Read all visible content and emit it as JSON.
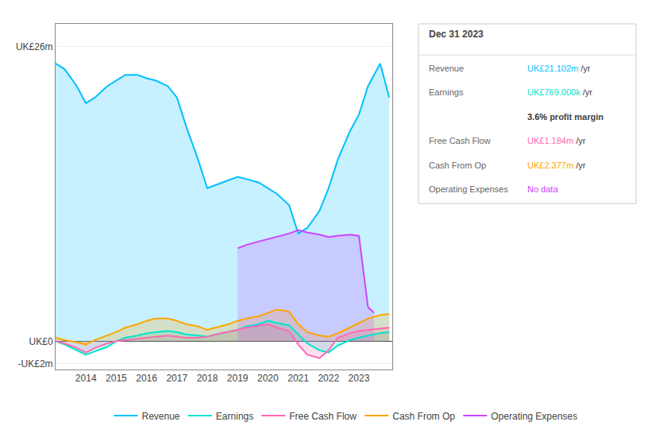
{
  "chart_data": {
    "type": "area",
    "x": [
      2013.0,
      2013.3,
      2013.7,
      2014.0,
      2014.3,
      2014.7,
      2015.0,
      2015.3,
      2015.7,
      2016.0,
      2016.3,
      2016.7,
      2017.0,
      2017.3,
      2017.7,
      2018.0,
      2018.3,
      2018.7,
      2019.0,
      2019.3,
      2019.7,
      2020.0,
      2020.3,
      2020.7,
      2021.0,
      2021.3,
      2021.7,
      2022.0,
      2022.3,
      2022.7,
      2023.0,
      2023.3,
      2023.7,
      2024.0
    ],
    "series": [
      {
        "name": "Revenue",
        "color": "#00bfff",
        "values": [
          24.5,
          24.0,
          22.5,
          21.0,
          21.5,
          22.5,
          23.0,
          23.5,
          23.5,
          23.2,
          23.0,
          22.5,
          21.5,
          19.0,
          16.0,
          13.5,
          13.8,
          14.2,
          14.5,
          14.3,
          14.0,
          13.5,
          13.0,
          12.0,
          9.5,
          10.0,
          11.5,
          13.5,
          16.0,
          18.5,
          20.0,
          22.5,
          24.5,
          21.5
        ]
      },
      {
        "name": "Earnings",
        "color": "#00e5cc",
        "values": [
          0.0,
          -0.3,
          -0.8,
          -1.2,
          -0.9,
          -0.5,
          0.0,
          0.3,
          0.5,
          0.7,
          0.8,
          0.9,
          0.8,
          0.6,
          0.5,
          0.4,
          0.6,
          0.8,
          1.0,
          1.3,
          1.5,
          1.8,
          1.6,
          1.4,
          0.6,
          -0.2,
          -0.8,
          -1.0,
          -0.4,
          0.1,
          0.3,
          0.5,
          0.7,
          0.8
        ]
      },
      {
        "name": "Free Cash Flow",
        "color": "#ff69b4",
        "values": [
          0.0,
          -0.2,
          -0.6,
          -1.0,
          -0.6,
          -0.2,
          0.0,
          0.1,
          0.2,
          0.3,
          0.4,
          0.5,
          0.4,
          0.3,
          0.3,
          0.4,
          0.6,
          0.8,
          1.0,
          1.2,
          1.4,
          1.5,
          1.2,
          0.9,
          -0.3,
          -1.2,
          -1.5,
          -0.8,
          0.3,
          0.7,
          0.9,
          1.0,
          1.1,
          1.2
        ]
      },
      {
        "name": "Cash From Op",
        "color": "#ffa500",
        "values": [
          0.3,
          0.1,
          -0.1,
          -0.3,
          0.1,
          0.5,
          0.8,
          1.2,
          1.5,
          1.8,
          2.0,
          2.0,
          1.8,
          1.5,
          1.3,
          1.0,
          1.2,
          1.5,
          1.8,
          2.0,
          2.2,
          2.5,
          2.8,
          2.6,
          1.5,
          0.8,
          0.5,
          0.4,
          0.7,
          1.2,
          1.6,
          2.0,
          2.3,
          2.4
        ]
      },
      {
        "name": "Operating Expenses",
        "color": "#cc44ff",
        "x": [
          2019.0,
          2019.3,
          2019.7,
          2020.0,
          2020.3,
          2020.7,
          2021.0,
          2021.3,
          2021.7,
          2022.0,
          2022.3,
          2022.7,
          2023.0,
          2023.3,
          2023.5
        ],
        "values": [
          8.2,
          8.5,
          8.8,
          9.0,
          9.2,
          9.5,
          9.8,
          9.6,
          9.4,
          9.2,
          9.3,
          9.4,
          9.3,
          3.0,
          2.5
        ]
      }
    ],
    "xlim": [
      2013.0,
      2024.1
    ],
    "xticks": [
      2014,
      2015,
      2016,
      2017,
      2018,
      2019,
      2020,
      2021,
      2022,
      2023
    ],
    "ylim": [
      -2.5,
      28
    ],
    "yticks": [
      {
        "value": 26,
        "label": "UK£26m"
      },
      {
        "value": 0,
        "label": "UK£0"
      },
      {
        "value": -2,
        "label": "-UK£2m"
      }
    ],
    "grid": "y",
    "legend": "bottom",
    "annotations": {
      "title": "Dec 31 2023",
      "rows": [
        {
          "label": "Revenue",
          "value": "UK£21.102m",
          "suffix": "/yr"
        },
        {
          "label": "Earnings",
          "value": "UK£769.000k",
          "suffix": "/yr"
        },
        {
          "value": "3.6%",
          "suffix": "profit margin"
        },
        {
          "label": "Free Cash Flow",
          "value": "UK£1.184m",
          "suffix": "/yr"
        },
        {
          "label": "Cash From Op",
          "value": "UK£2.377m",
          "suffix": "/yr"
        },
        {
          "label": "Operating Expenses",
          "value": "No data"
        }
      ]
    }
  }
}
